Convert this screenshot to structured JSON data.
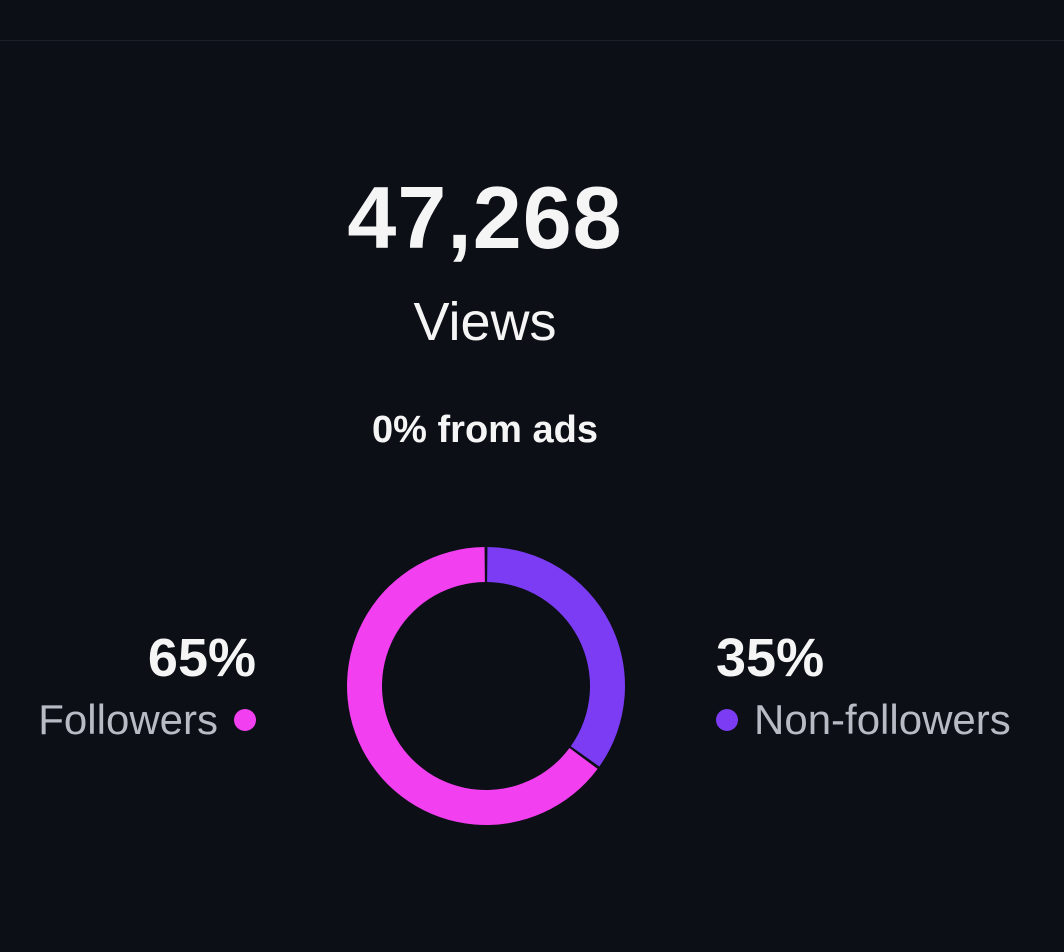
{
  "summary": {
    "views_count": "47,268",
    "views_label": "Views",
    "ads_text": "0% from ads"
  },
  "colors": {
    "followers": "#f23ff0",
    "non_followers": "#7b3cf4",
    "background": "#0d0f17"
  },
  "chart_data": {
    "type": "pie",
    "categories": [
      "Followers",
      "Non-followers"
    ],
    "values": [
      65,
      35
    ],
    "labels": [
      "65%",
      "35%"
    ],
    "colors": [
      "#f23ff0",
      "#7b3cf4"
    ]
  },
  "legend": {
    "followers": {
      "percent": "65%",
      "label": "Followers"
    },
    "non_followers": {
      "percent": "35%",
      "label": "Non-followers"
    }
  }
}
